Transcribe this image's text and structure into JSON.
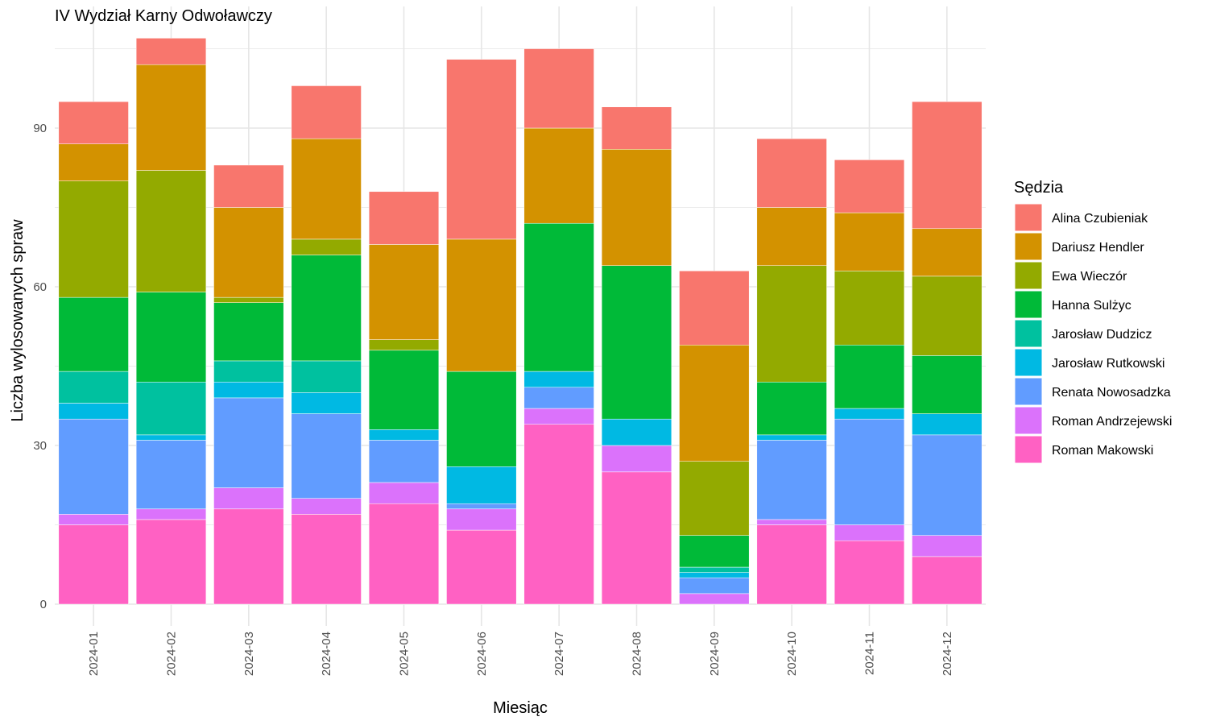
{
  "chart_data": {
    "type": "bar",
    "stacked": true,
    "title": "IV Wydział Karny Odwoławczy",
    "xlabel": "Miesiąc",
    "ylabel": "Liczba wylosowanych spraw",
    "ylim": [
      0,
      110
    ],
    "yticks": [
      0,
      30,
      60,
      90
    ],
    "grid": true,
    "legend_title": "Sędzia",
    "legend_position": "right",
    "categories": [
      "2024-01",
      "2024-02",
      "2024-03",
      "2024-04",
      "2024-05",
      "2024-06",
      "2024-07",
      "2024-08",
      "2024-09",
      "2024-10",
      "2024-11",
      "2024-12"
    ],
    "series": [
      {
        "name": "Roman Makowski",
        "color": "#FF61C3",
        "values": [
          15,
          16,
          18,
          17,
          19,
          14,
          34,
          25,
          0,
          15,
          12,
          9
        ]
      },
      {
        "name": "Roman Andrzejewski",
        "color": "#DB72FB",
        "values": [
          2,
          2,
          4,
          3,
          4,
          4,
          3,
          5,
          2,
          1,
          3,
          4
        ]
      },
      {
        "name": "Renata Nowosadzka",
        "color": "#619CFF",
        "values": [
          18,
          13,
          17,
          16,
          8,
          1,
          4,
          0,
          3,
          15,
          20,
          19
        ]
      },
      {
        "name": "Jarosław Rutkowski",
        "color": "#00B9E3",
        "values": [
          3,
          1,
          3,
          4,
          2,
          7,
          3,
          5,
          1,
          1,
          2,
          4
        ]
      },
      {
        "name": "Jarosław Dudzicz",
        "color": "#00C19F",
        "values": [
          6,
          10,
          4,
          6,
          0,
          0,
          0,
          0,
          1,
          0,
          0,
          0
        ]
      },
      {
        "name": "Hanna Sulżyc",
        "color": "#00BA38",
        "values": [
          14,
          17,
          11,
          20,
          15,
          18,
          28,
          29,
          6,
          10,
          12,
          11
        ]
      },
      {
        "name": "Ewa Wieczór",
        "color": "#93AA00",
        "values": [
          22,
          23,
          1,
          3,
          2,
          0,
          0,
          0,
          14,
          22,
          14,
          15
        ]
      },
      {
        "name": "Dariusz Hendler",
        "color": "#D39200",
        "values": [
          7,
          20,
          17,
          19,
          18,
          25,
          18,
          22,
          22,
          11,
          11,
          9
        ]
      },
      {
        "name": "Alina Czubieniak",
        "color": "#F8766D",
        "values": [
          8,
          5,
          8,
          10,
          10,
          34,
          15,
          8,
          14,
          13,
          10,
          24
        ]
      }
    ],
    "legend_order": [
      "Alina Czubieniak",
      "Dariusz Hendler",
      "Ewa Wieczór",
      "Hanna Sulżyc",
      "Jarosław Dudzicz",
      "Jarosław Rutkowski",
      "Renata Nowosadzka",
      "Roman Andrzejewski",
      "Roman Makowski"
    ]
  }
}
